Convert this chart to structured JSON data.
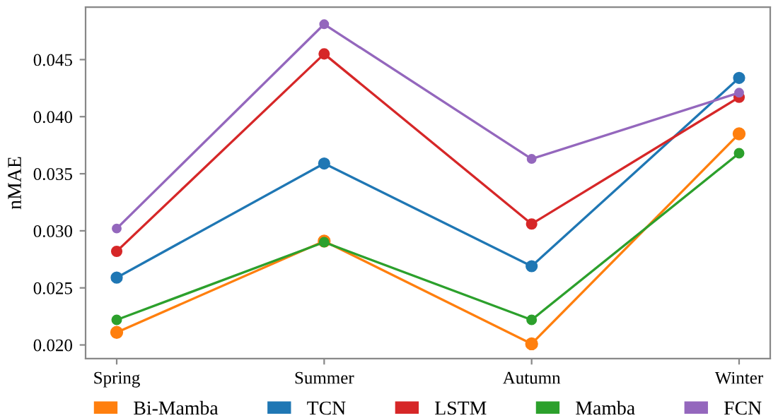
{
  "chart_data": {
    "type": "line",
    "ylabel": "nMAE",
    "categories": [
      "Spring",
      "Summer",
      "Autumn",
      "Winter"
    ],
    "series": [
      {
        "name": "Bi-Mamba",
        "color": "#ff7f0e",
        "values": [
          0.0211,
          0.0291,
          0.0201,
          0.0385
        ]
      },
      {
        "name": "TCN",
        "color": "#1f77b4",
        "values": [
          0.0259,
          0.0359,
          0.0269,
          0.0434
        ]
      },
      {
        "name": "LSTM",
        "color": "#d62728",
        "values": [
          0.0282,
          0.0455,
          0.0306,
          0.0417
        ]
      },
      {
        "name": "Mamba",
        "color": "#2ca02c",
        "values": [
          0.0222,
          0.029,
          0.0222,
          0.0368
        ]
      },
      {
        "name": "FCN",
        "color": "#9467bd",
        "values": [
          0.0302,
          0.0481,
          0.0363,
          0.0421
        ]
      }
    ],
    "ylim": [
      0.0188,
      0.0496
    ],
    "yticks": [
      {
        "value": 0.02,
        "label": "0.020"
      },
      {
        "value": 0.025,
        "label": "0.025"
      },
      {
        "value": 0.03,
        "label": "0.030"
      },
      {
        "value": 0.035,
        "label": "0.035"
      },
      {
        "value": 0.04,
        "label": "0.040"
      },
      {
        "value": 0.045,
        "label": "0.045"
      }
    ],
    "marker": "circle",
    "line_style": "solid",
    "grid": false,
    "legend": "bottom"
  }
}
